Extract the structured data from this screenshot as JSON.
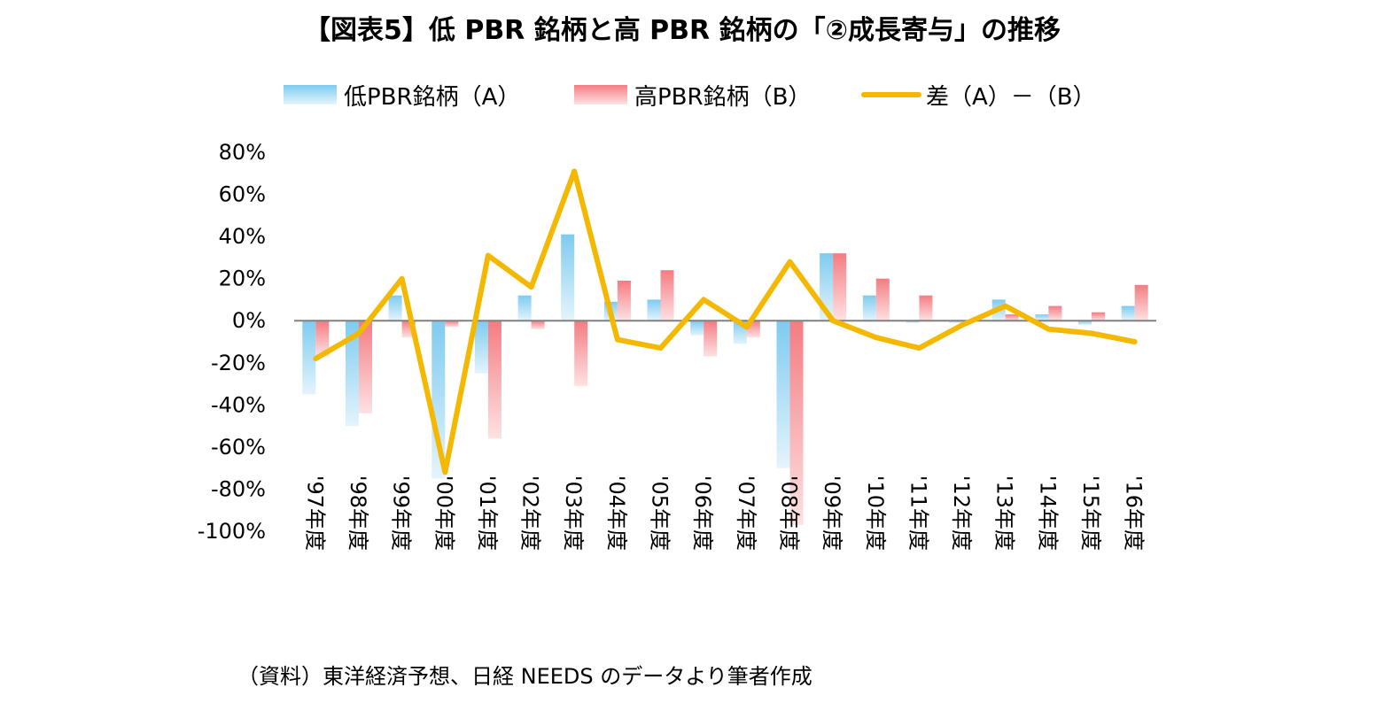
{
  "chart_data": {
    "type": "bar",
    "title": "【図表5】低 PBR 銘柄と高 PBR 銘柄の「②成長寄与」の推移",
    "categories": [
      "'97年度",
      "'98年度",
      "'99年度",
      "'00年度",
      "'01年度",
      "'02年度",
      "'03年度",
      "'04年度",
      "'05年度",
      "'06年度",
      "'07年度",
      "'08年度",
      "'09年度",
      "'10年度",
      "'11年度",
      "'12年度",
      "'13年度",
      "'14年度",
      "'15年度",
      "'16年度"
    ],
    "series": [
      {
        "name": "低PBR銘柄（A）",
        "kind": "bar",
        "color": "#7ecbf0",
        "values": [
          -35,
          -50,
          12,
          -75,
          -25,
          12,
          41,
          9,
          10,
          -7,
          -11,
          -70,
          32,
          12,
          -1,
          -1,
          10,
          3,
          -2,
          7
        ]
      },
      {
        "name": "高PBR銘柄（B）",
        "kind": "bar",
        "color": "#f47c82",
        "values": [
          -17,
          -44,
          -8,
          -3,
          -56,
          -4,
          -31,
          19,
          24,
          -17,
          -8,
          -97,
          32,
          20,
          12,
          0,
          3,
          7,
          4,
          17
        ]
      },
      {
        "name": "差（A）－（B）",
        "kind": "line",
        "color": "#f5b800",
        "values": [
          -18,
          -6,
          20,
          -72,
          31,
          16,
          71,
          -9,
          -13,
          10,
          -3,
          28,
          0,
          -8,
          -13,
          -2,
          7,
          -4,
          -6,
          -10
        ]
      }
    ],
    "ylim": [
      -100,
      80
    ],
    "yticks": [
      "80%",
      "60%",
      "40%",
      "20%",
      "0%",
      "-20%",
      "-40%",
      "-60%",
      "-80%",
      "-100%"
    ],
    "xlabel": "",
    "ylabel": "",
    "legend_position": "top",
    "grid": false
  },
  "source_note": "（資料）東洋経済予想、日経 NEEDS のデータより筆者作成"
}
